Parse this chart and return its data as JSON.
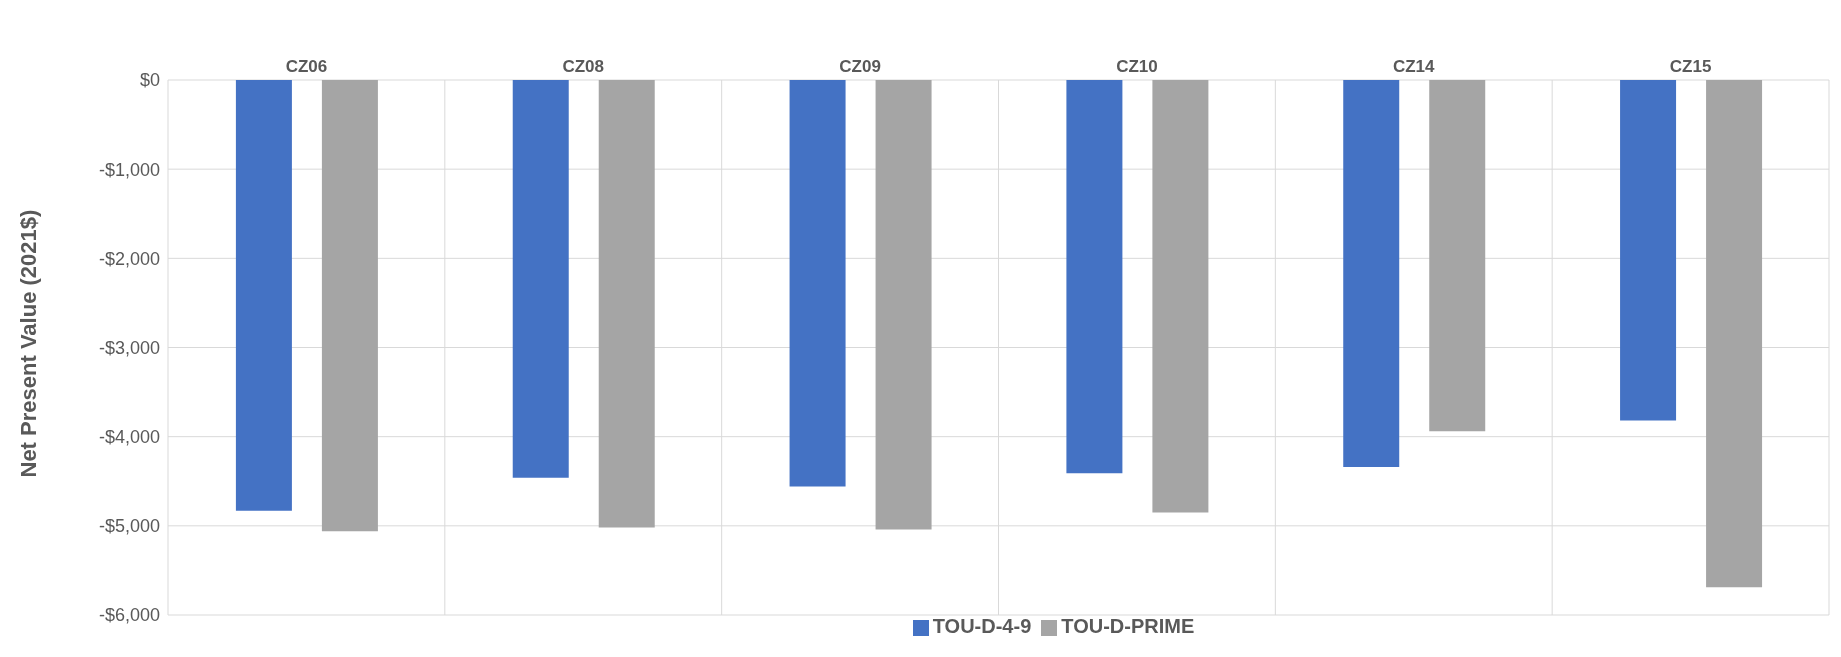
{
  "chart_data": {
    "type": "bar",
    "ylabel": "Net Present Value (2021$)",
    "categories": [
      "CZ06",
      "CZ08",
      "CZ09",
      "CZ10",
      "CZ14",
      "CZ15"
    ],
    "series": [
      {
        "name": "TOU-D-4-9",
        "color": "#4472c4",
        "values": [
          -4830,
          -4460,
          -4560,
          -4410,
          -4340,
          -3820
        ]
      },
      {
        "name": "TOU-D-PRIME",
        "color": "#a5a5a5",
        "values": [
          -5060,
          -5020,
          -5040,
          -4850,
          -3940,
          -5690
        ]
      }
    ],
    "ylim": [
      -6000,
      0
    ],
    "yticks": [
      {
        "value": -6000,
        "label": "-$6,000"
      },
      {
        "value": -5000,
        "label": "-$5,000"
      },
      {
        "value": -4000,
        "label": "-$4,000"
      },
      {
        "value": -3000,
        "label": "-$3,000"
      },
      {
        "value": -2000,
        "label": "-$2,000"
      },
      {
        "value": -1000,
        "label": "-$1,000"
      },
      {
        "value": 0,
        "label": "$0"
      }
    ],
    "grid": true,
    "legend": "bottom"
  }
}
